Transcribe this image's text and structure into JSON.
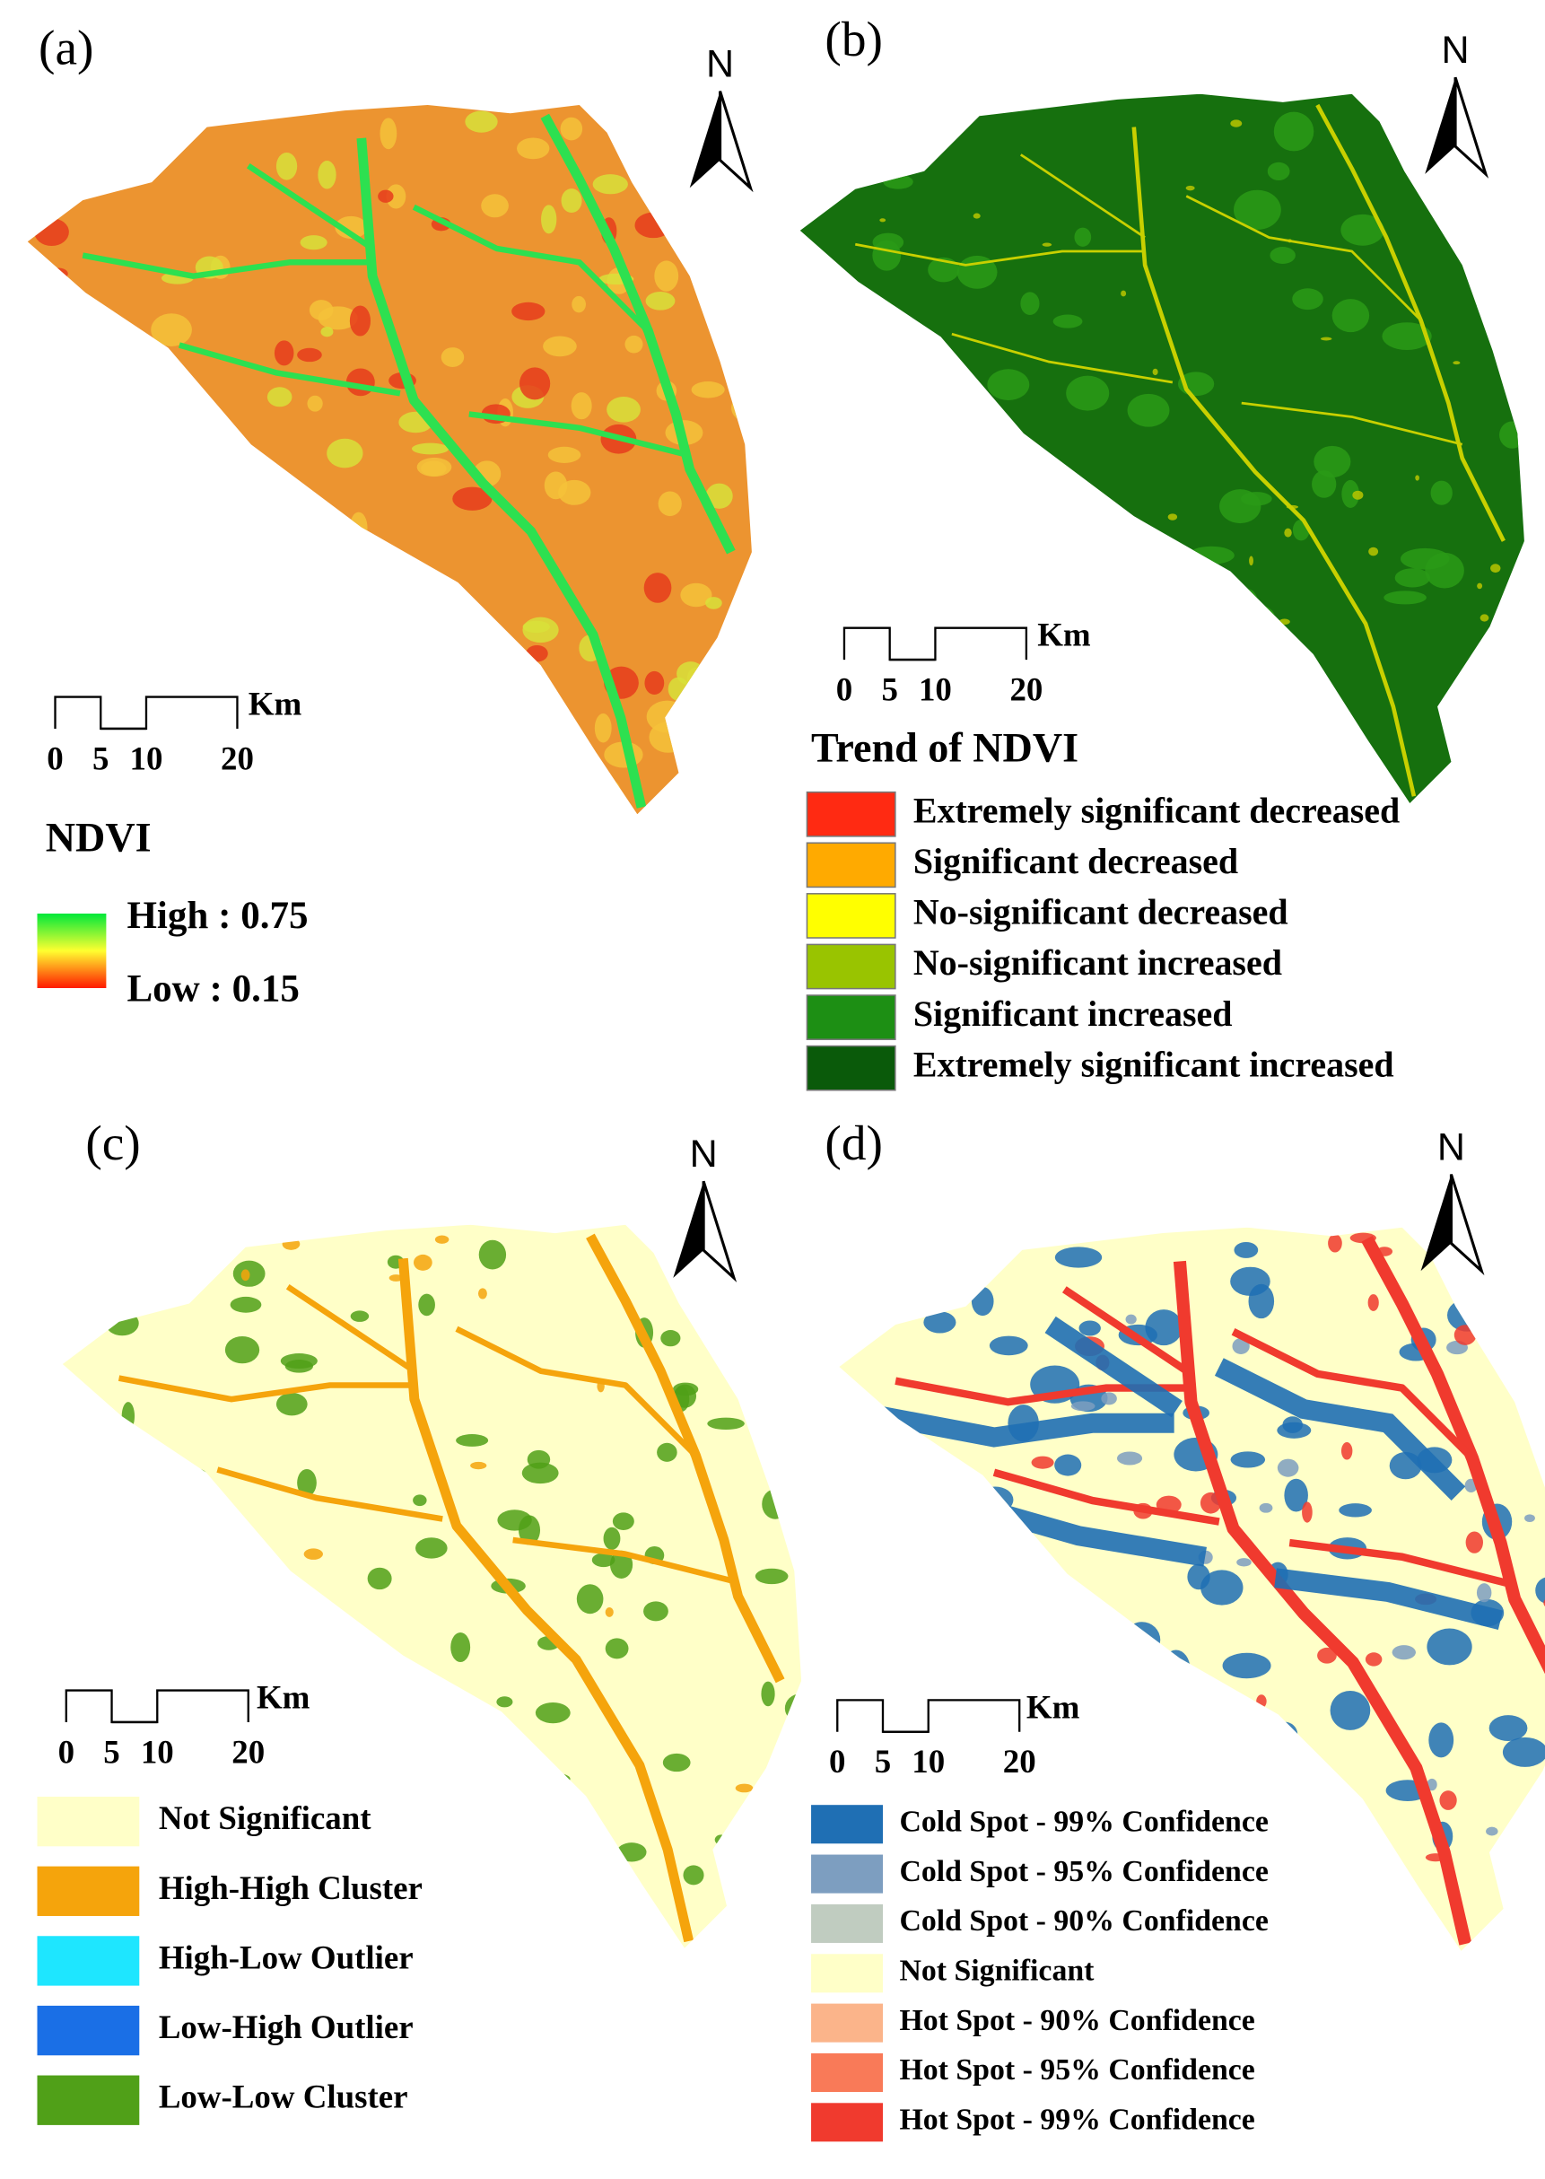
{
  "panels": [
    {
      "label": "(a)",
      "north": "N",
      "scale_bar": {
        "labels": [
          "0",
          "5",
          "10",
          "20"
        ],
        "unit": "Km"
      },
      "legend": {
        "title": "NDVI",
        "gradient": [
          "#00e83a",
          "#ffff30",
          "#ff1a00"
        ],
        "high": "High : 0.75",
        "low": "Low : 0.15"
      }
    },
    {
      "label": "(b)",
      "north": "N",
      "scale_bar": {
        "labels": [
          "0",
          "5",
          "10",
          "20"
        ],
        "unit": "Km"
      },
      "legend": {
        "title": "Trend of NDVI",
        "items": [
          {
            "label": "Extremely significant decreased",
            "color": "#ff2a12"
          },
          {
            "label": "Significant decreased",
            "color": "#ffaa00"
          },
          {
            "label": "No-significant decreased",
            "color": "#ffff00"
          },
          {
            "label": "No-significant increased",
            "color": "#99c400"
          },
          {
            "label": "Significant increased",
            "color": "#1d8f14"
          },
          {
            "label": "Extremely significant increased",
            "color": "#0a5a0a"
          }
        ]
      }
    },
    {
      "label": "(c)",
      "north": "N",
      "scale_bar": {
        "labels": [
          "0",
          "5",
          "10",
          "20"
        ],
        "unit": "Km"
      },
      "legend": {
        "items": [
          {
            "label": "Not Significant",
            "color": "#ffffc8"
          },
          {
            "label": "High-High Cluster",
            "color": "#f5a40c"
          },
          {
            "label": "High-Low Outlier",
            "color": "#1ee6ff"
          },
          {
            "label": "Low-High Outlier",
            "color": "#1a6fe6"
          },
          {
            "label": "Low-Low Cluster",
            "color": "#50a018"
          }
        ]
      }
    },
    {
      "label": "(d)",
      "north": "N",
      "scale_bar": {
        "labels": [
          "0",
          "5",
          "10",
          "20"
        ],
        "unit": "Km"
      },
      "legend": {
        "items": [
          {
            "label": "Cold Spot - 99% Confidence",
            "color": "#1f6fb4"
          },
          {
            "label": "Cold Spot - 95% Confidence",
            "color": "#7d9ec0"
          },
          {
            "label": "Cold Spot - 90% Confidence",
            "color": "#c0ccc0"
          },
          {
            "label": "Not Significant",
            "color": "#ffffc8"
          },
          {
            "label": "Hot Spot - 90% Confidence",
            "color": "#fbb48a"
          },
          {
            "label": "Hot Spot - 95% Confidence",
            "color": "#f97a58"
          },
          {
            "label": "Hot Spot - 99% Confidence",
            "color": "#f03a2e"
          }
        ]
      }
    }
  ]
}
